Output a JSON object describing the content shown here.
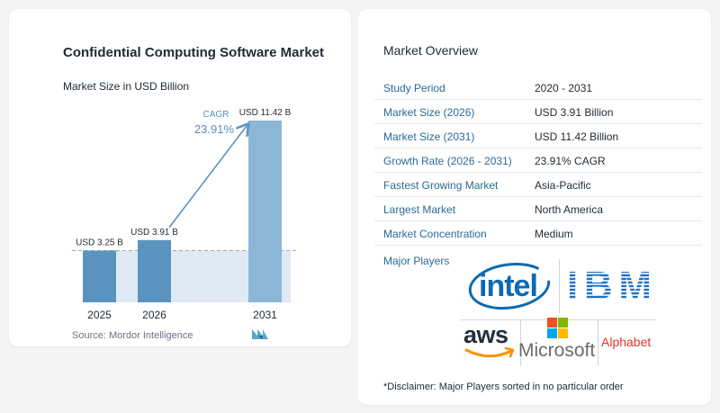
{
  "chart_data": {
    "type": "bar",
    "title": "Confidential Computing Software Market",
    "subtitle": "Market Size in USD Billion",
    "categories": [
      "2025",
      "2026",
      "2031"
    ],
    "values": [
      3.25,
      3.91,
      11.42
    ],
    "data_labels": [
      "USD 3.25 B",
      "USD 3.91 B",
      "USD 11.42 B"
    ],
    "cagr_label": "CAGR",
    "cagr_value": "23.91%",
    "ylim": [
      0,
      11.42
    ],
    "grid": false,
    "colors": {
      "bar": "#5b93bf",
      "bar_light": "#8cb6d6",
      "band": "#dfeaf4",
      "arrow": "#5b93bf",
      "cagr_text": "#5b8fb9"
    }
  },
  "source": "Source:  Mordor Intelligence",
  "overview": {
    "title": "Market Overview",
    "rows": [
      {
        "label": "Study Period",
        "value": "2020 - 2031"
      },
      {
        "label": "Market Size (2026)",
        "value": "USD 3.91 Billion"
      },
      {
        "label": "Market Size (2031)",
        "value": "USD 11.42 Billion"
      },
      {
        "label": "Growth Rate (2026 - 2031)",
        "value": "23.91% CAGR"
      },
      {
        "label": "Fastest Growing Market",
        "value": "Asia-Pacific"
      },
      {
        "label": "Largest Market",
        "value": "North America"
      },
      {
        "label": "Market Concentration",
        "value": "Medium"
      }
    ],
    "players_label": "Major Players",
    "disclaimer": "*Disclaimer: Major Players sorted in no particular order"
  },
  "players": {
    "intel": "intel",
    "ibm": "IBM",
    "aws": "aws",
    "microsoft": "Microsoft",
    "alphabet": "Alphabet"
  }
}
